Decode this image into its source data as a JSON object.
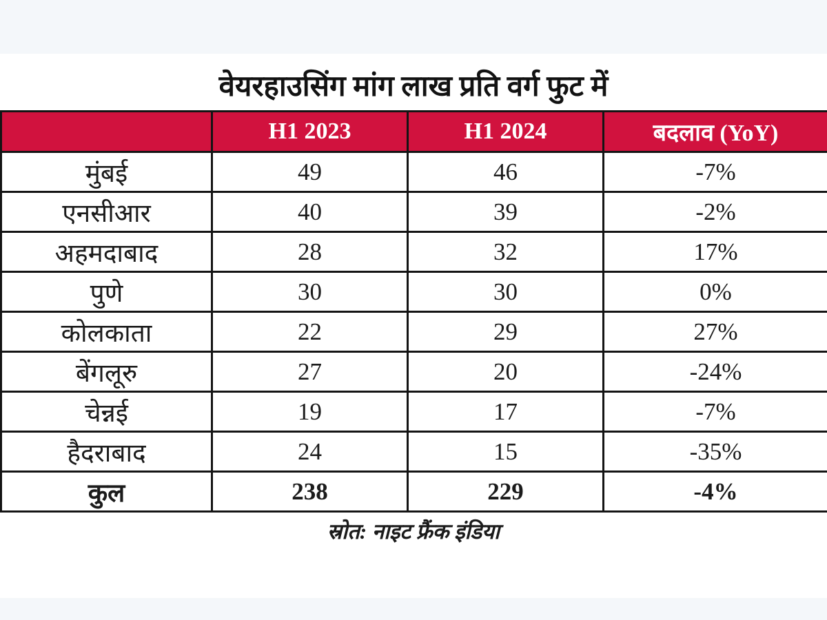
{
  "page": {
    "title": "वेयरहाउसिंग मांग  लाख प्रति वर्ग फुट में",
    "source": "स्रोत: नाइट फ्रैंक इंडिया"
  },
  "colors": {
    "header_bg": "#d1123e",
    "header_text": "#ffffff",
    "border": "#141414",
    "band_bg": "#f4f7fa",
    "page_bg": "#ffffff"
  },
  "table": {
    "columns": [
      "",
      "H1 2023",
      "H1 2024",
      "बदलाव (YoY)"
    ],
    "rows": [
      {
        "city": "मुंबई",
        "h1_2023": "49",
        "h1_2024": "46",
        "yoy": "-7%"
      },
      {
        "city": "एनसीआर",
        "h1_2023": "40",
        "h1_2024": "39",
        "yoy": "-2%"
      },
      {
        "city": "अहमदाबाद",
        "h1_2023": "28",
        "h1_2024": "32",
        "yoy": "17%"
      },
      {
        "city": "पुणे",
        "h1_2023": "30",
        "h1_2024": "30",
        "yoy": "0%"
      },
      {
        "city": "कोलकाता",
        "h1_2023": "22",
        "h1_2024": "29",
        "yoy": "27%"
      },
      {
        "city": "बेंगलूरु",
        "h1_2023": "27",
        "h1_2024": "20",
        "yoy": "-24%"
      },
      {
        "city": "चेन्नई",
        "h1_2023": "19",
        "h1_2024": "17",
        "yoy": "-7%"
      },
      {
        "city": "हैदराबाद",
        "h1_2023": "24",
        "h1_2024": "15",
        "yoy": "-35%"
      }
    ],
    "total": {
      "city": "कुल",
      "h1_2023": "238",
      "h1_2024": "229",
      "yoy": "-4%"
    }
  },
  "chart_data": {
    "type": "table",
    "title": "वेयरहाउसिंग मांग  लाख प्रति वर्ग फुट में",
    "columns": [
      "",
      "H1 2023",
      "H1 2024",
      "बदलाव (YoY)"
    ],
    "categories": [
      "मुंबई",
      "एनसीआर",
      "अहमदाबाद",
      "पुणे",
      "कोलकाता",
      "बेंगलूरु",
      "चेन्नई",
      "हैदराबाद",
      "कुल"
    ],
    "series": [
      {
        "name": "H1 2023",
        "values": [
          49,
          40,
          28,
          30,
          22,
          27,
          19,
          24,
          238
        ]
      },
      {
        "name": "H1 2024",
        "values": [
          46,
          39,
          32,
          30,
          29,
          20,
          17,
          15,
          229
        ]
      },
      {
        "name": "बदलाव (YoY)",
        "values": [
          "-7%",
          "-2%",
          "17%",
          "0%",
          "27%",
          "-24%",
          "-7%",
          "-35%",
          "-4%"
        ]
      }
    ],
    "source": "स्रोत: नाइट फ्रैंक इंडिया"
  }
}
